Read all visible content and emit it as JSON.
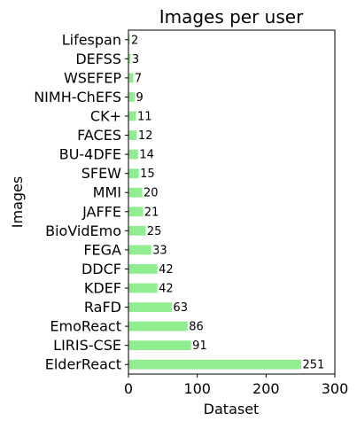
{
  "chart_data": {
    "type": "bar",
    "orientation": "horizontal",
    "title": "Images per user",
    "xlabel": "Dataset",
    "ylabel": "Images",
    "bar_color": "#90ee90",
    "xlim": [
      0,
      300
    ],
    "xticks": [
      0,
      100,
      200,
      300
    ],
    "grid": false,
    "legend": "none",
    "categories": [
      "ElderReact",
      "LIRIS-CSE",
      "EmoReact",
      "RaFD",
      "KDEF",
      "DDCF",
      "FEGA",
      "BioVidEmo",
      "JAFFE",
      "MMI",
      "SFEW",
      "BU-4DFE",
      "FACES",
      "CK+",
      "NIMH-ChEFS",
      "WSEFEP",
      "DEFSS",
      "Lifespan"
    ],
    "values": [
      251,
      91,
      86,
      63,
      42,
      42,
      33,
      25,
      21,
      20,
      15,
      14,
      12,
      11,
      9,
      7,
      3,
      2
    ]
  }
}
